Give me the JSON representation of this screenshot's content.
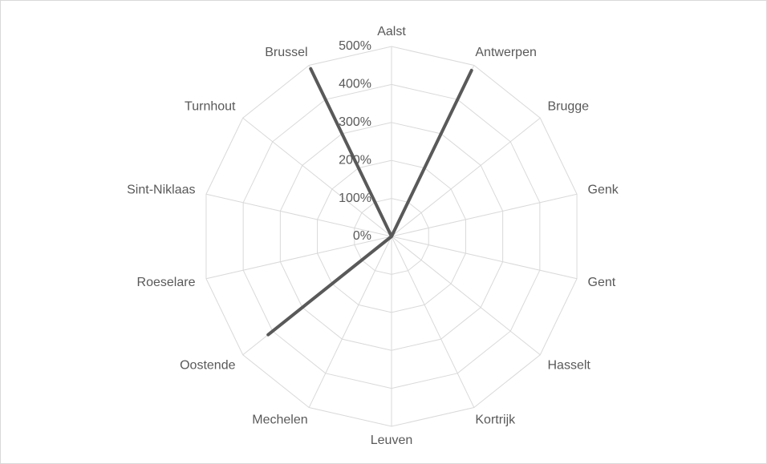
{
  "chart_data": {
    "type": "radar",
    "categories": [
      "Aalst",
      "Antwerpen",
      "Brugge",
      "Genk",
      "Gent",
      "Hasselt",
      "Kortrijk",
      "Leuven",
      "Mechelen",
      "Oostende",
      "Roeselare",
      "Sint-Niklaas",
      "Turnhout",
      "Brussel"
    ],
    "values": [
      0,
      485,
      0,
      0,
      0,
      0,
      0,
      0,
      0,
      415,
      0,
      0,
      0,
      490
    ],
    "color": "#595959",
    "ylim": [
      0,
      500
    ],
    "yticks": [
      {
        "value": 0,
        "label": "0%"
      },
      {
        "value": 100,
        "label": "100%"
      },
      {
        "value": 200,
        "label": "200%"
      },
      {
        "value": 300,
        "label": "300%"
      },
      {
        "value": 400,
        "label": "400%"
      },
      {
        "value": 500,
        "label": "500%"
      }
    ],
    "grid": true
  }
}
